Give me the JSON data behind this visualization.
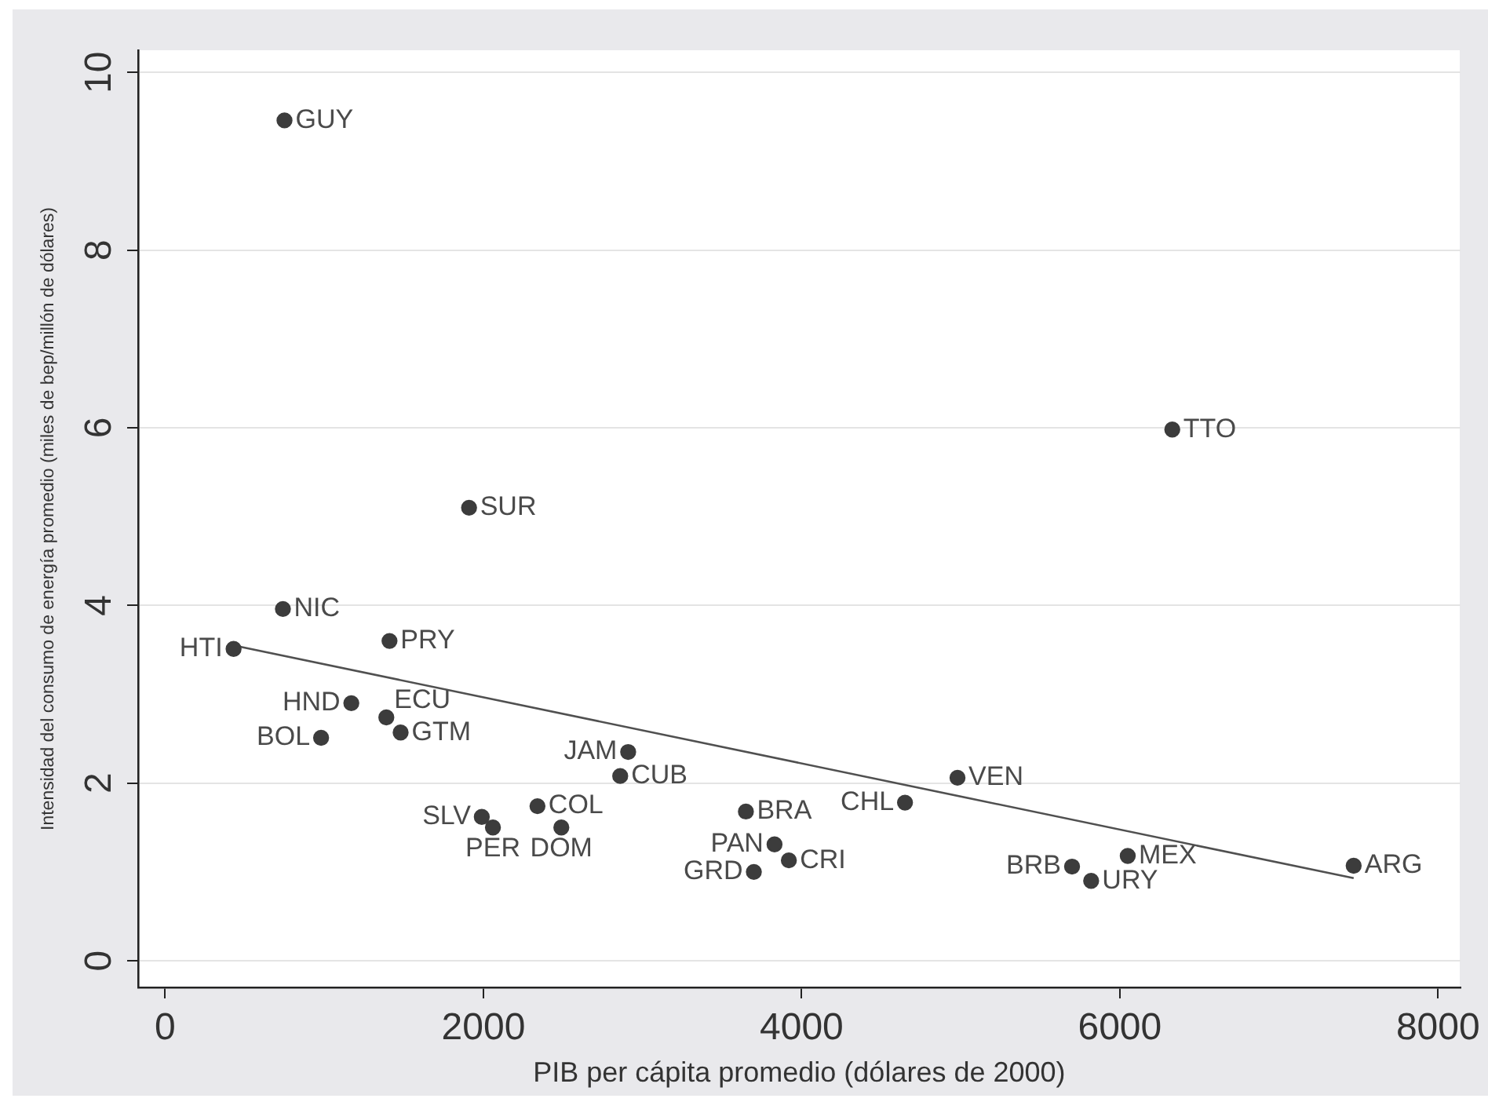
{
  "chart_data": {
    "type": "scatter",
    "xlabel": "PIB per cápita promedio (dólares de 2000)",
    "ylabel": "Intensidad del consumo de energía promedio (miles de bep/millón de dólares)",
    "xlim": [
      -170,
      8140
    ],
    "xticks": [
      0,
      2000,
      4000,
      6000,
      8000
    ],
    "ylim": [
      -0.3,
      10.25
    ],
    "yticks": [
      0,
      2,
      4,
      6,
      8,
      10
    ],
    "grid": "y",
    "marker": "circle",
    "series": [
      {
        "type": "scatter",
        "color": "#3c3c3c",
        "x": [
          750,
          1910,
          740,
          6330,
          430,
          1410,
          1170,
          1390,
          1480,
          980,
          2910,
          2860,
          2340,
          1990,
          2060,
          2490,
          3650,
          3830,
          3920,
          3700,
          4650,
          4980,
          5700,
          5820,
          6050,
          7470
        ],
        "values": [
          9.46,
          5.1,
          3.96,
          5.98,
          3.51,
          3.6,
          2.9,
          2.74,
          2.57,
          2.51,
          2.35,
          2.08,
          1.74,
          1.62,
          1.5,
          1.5,
          1.68,
          1.31,
          1.13,
          1.0,
          1.78,
          2.06,
          1.06,
          0.9,
          1.18,
          1.07
        ]
      },
      {
        "type": "line",
        "color": "#505050",
        "marker": "none",
        "x": [
          430,
          7470
        ],
        "values": [
          3.55,
          0.93
        ]
      }
    ],
    "annotations": [
      {
        "text": "GUY",
        "x": 750,
        "y": 9.46
      },
      {
        "text": "SUR",
        "x": 1910,
        "y": 5.1
      },
      {
        "text": "NIC",
        "x": 740,
        "y": 3.96
      },
      {
        "text": "TTO",
        "x": 6330,
        "y": 5.98
      },
      {
        "text": "HTI",
        "x": 430,
        "y": 3.51
      },
      {
        "text": "PRY",
        "x": 1410,
        "y": 3.6
      },
      {
        "text": "HND",
        "x": 1170,
        "y": 2.9
      },
      {
        "text": "ECU",
        "x": 1390,
        "y": 2.74
      },
      {
        "text": "GTM",
        "x": 1480,
        "y": 2.57
      },
      {
        "text": "BOL",
        "x": 980,
        "y": 2.51
      },
      {
        "text": "JAM",
        "x": 2910,
        "y": 2.35
      },
      {
        "text": "CUB",
        "x": 2860,
        "y": 2.08
      },
      {
        "text": "COL",
        "x": 2340,
        "y": 1.74
      },
      {
        "text": "SLV",
        "x": 1990,
        "y": 1.62
      },
      {
        "text": "PER",
        "x": 2060,
        "y": 1.5
      },
      {
        "text": "DOM",
        "x": 2490,
        "y": 1.5
      },
      {
        "text": "BRA",
        "x": 3650,
        "y": 1.68
      },
      {
        "text": "PAN",
        "x": 3830,
        "y": 1.31
      },
      {
        "text": "CRI",
        "x": 3920,
        "y": 1.13
      },
      {
        "text": "GRD",
        "x": 3700,
        "y": 1.0
      },
      {
        "text": "CHL",
        "x": 4650,
        "y": 1.78
      },
      {
        "text": "VEN",
        "x": 4980,
        "y": 2.06
      },
      {
        "text": "BRB",
        "x": 5700,
        "y": 1.06
      },
      {
        "text": "URY",
        "x": 5820,
        "y": 0.9
      },
      {
        "text": "MEX",
        "x": 6050,
        "y": 1.18
      },
      {
        "text": "ARG",
        "x": 7470,
        "y": 1.07
      }
    ]
  }
}
